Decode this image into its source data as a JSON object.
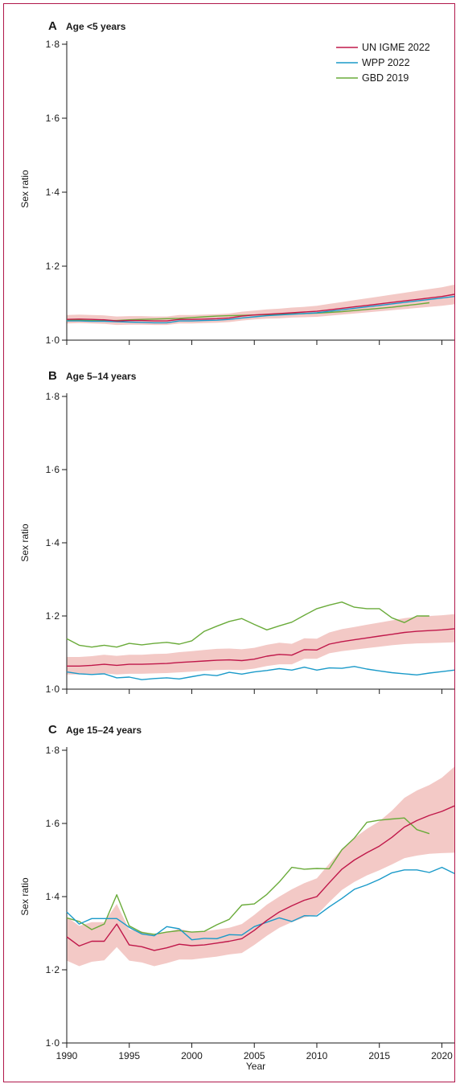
{
  "colors": {
    "un_igme": "#c0184a",
    "wpp": "#1a9ac9",
    "gbd": "#6aab3a",
    "band": "#f3c9c6",
    "border": "#b0174a"
  },
  "legend": [
    "UN IGME 2022",
    "WPP 2022",
    "GBD 2019"
  ],
  "chart_data": [
    {
      "type": "line",
      "panel": "A",
      "title": "Age <5 years",
      "xlabel": "",
      "ylabel": "Sex ratio",
      "xlim": [
        1990,
        2021
      ],
      "ylim": [
        1.0,
        1.8
      ],
      "yticks": [
        "1·0",
        "1·2",
        "1·4",
        "1·6",
        "1·8"
      ],
      "x": [
        1990,
        1991,
        1992,
        1993,
        1994,
        1995,
        1996,
        1997,
        1998,
        1999,
        2000,
        2001,
        2002,
        2003,
        2004,
        2005,
        2006,
        2007,
        2008,
        2009,
        2010,
        2011,
        2012,
        2013,
        2014,
        2015,
        2016,
        2017,
        2018,
        2019,
        2020,
        2021
      ],
      "series": [
        {
          "name": "UN IGME 2022",
          "color_key": "un_igme",
          "values": [
            1.056,
            1.057,
            1.056,
            1.055,
            1.052,
            1.053,
            1.053,
            1.052,
            1.052,
            1.056,
            1.056,
            1.057,
            1.058,
            1.06,
            1.065,
            1.068,
            1.07,
            1.072,
            1.074,
            1.076,
            1.078,
            1.082,
            1.086,
            1.09,
            1.094,
            1.098,
            1.102,
            1.106,
            1.11,
            1.114,
            1.118,
            1.124
          ],
          "band_lower": [
            1.045,
            1.046,
            1.045,
            1.044,
            1.041,
            1.042,
            1.042,
            1.041,
            1.041,
            1.045,
            1.045,
            1.046,
            1.047,
            1.049,
            1.053,
            1.056,
            1.058,
            1.059,
            1.061,
            1.062,
            1.063,
            1.066,
            1.069,
            1.072,
            1.075,
            1.078,
            1.081,
            1.084,
            1.087,
            1.09,
            1.093,
            1.097
          ],
          "band_upper": [
            1.068,
            1.069,
            1.068,
            1.067,
            1.064,
            1.065,
            1.065,
            1.064,
            1.064,
            1.068,
            1.068,
            1.069,
            1.07,
            1.072,
            1.077,
            1.08,
            1.083,
            1.085,
            1.088,
            1.09,
            1.093,
            1.098,
            1.103,
            1.108,
            1.113,
            1.118,
            1.123,
            1.128,
            1.133,
            1.138,
            1.143,
            1.15
          ]
        },
        {
          "name": "WPP 2022",
          "color_key": "wpp",
          "values": [
            1.052,
            1.052,
            1.051,
            1.051,
            1.05,
            1.049,
            1.048,
            1.047,
            1.047,
            1.052,
            1.052,
            1.053,
            1.054,
            1.056,
            1.06,
            1.063,
            1.066,
            1.068,
            1.07,
            1.072,
            1.074,
            1.078,
            1.082,
            1.086,
            1.09,
            1.094,
            1.098,
            1.102,
            1.106,
            1.11,
            1.114,
            1.118
          ]
        },
        {
          "name": "GBD 2019",
          "color_key": "gbd",
          "values": [
            1.054,
            1.054,
            1.053,
            1.053,
            1.053,
            1.055,
            1.056,
            1.057,
            1.058,
            1.059,
            1.061,
            1.063,
            1.065,
            1.066,
            1.067,
            1.068,
            1.069,
            1.07,
            1.071,
            1.072,
            1.073,
            1.075,
            1.077,
            1.08,
            1.083,
            1.086,
            1.089,
            1.093,
            1.097,
            1.101,
            null,
            null
          ]
        }
      ]
    },
    {
      "type": "line",
      "panel": "B",
      "title": "Age 5–14 years",
      "xlabel": "",
      "ylabel": "Sex ratio",
      "xlim": [
        1990,
        2021
      ],
      "ylim": [
        1.0,
        1.8
      ],
      "yticks": [
        "1·0",
        "1·2",
        "1·4",
        "1·6",
        "1·8"
      ],
      "x": [
        1990,
        1991,
        1992,
        1993,
        1994,
        1995,
        1996,
        1997,
        1998,
        1999,
        2000,
        2001,
        2002,
        2003,
        2004,
        2005,
        2006,
        2007,
        2008,
        2009,
        2010,
        2011,
        2012,
        2013,
        2014,
        2015,
        2016,
        2017,
        2018,
        2019,
        2020,
        2021
      ],
      "series": [
        {
          "name": "UN IGME 2022",
          "color_key": "un_igme",
          "values": [
            1.063,
            1.063,
            1.065,
            1.068,
            1.065,
            1.068,
            1.068,
            1.069,
            1.07,
            1.073,
            1.075,
            1.077,
            1.079,
            1.08,
            1.078,
            1.082,
            1.09,
            1.095,
            1.093,
            1.108,
            1.107,
            1.123,
            1.13,
            1.135,
            1.14,
            1.145,
            1.15,
            1.155,
            1.158,
            1.16,
            1.162,
            1.165
          ],
          "band_lower": [
            1.04,
            1.04,
            1.041,
            1.043,
            1.04,
            1.042,
            1.042,
            1.043,
            1.044,
            1.046,
            1.048,
            1.05,
            1.052,
            1.053,
            1.052,
            1.056,
            1.063,
            1.068,
            1.068,
            1.083,
            1.083,
            1.098,
            1.104,
            1.108,
            1.112,
            1.116,
            1.12,
            1.123,
            1.125,
            1.126,
            1.127,
            1.128
          ],
          "band_upper": [
            1.088,
            1.088,
            1.09,
            1.094,
            1.091,
            1.094,
            1.094,
            1.096,
            1.097,
            1.101,
            1.104,
            1.107,
            1.11,
            1.111,
            1.109,
            1.113,
            1.121,
            1.127,
            1.124,
            1.139,
            1.138,
            1.155,
            1.164,
            1.17,
            1.176,
            1.182,
            1.188,
            1.194,
            1.198,
            1.2,
            1.202,
            1.205
          ]
        },
        {
          "name": "WPP 2022",
          "color_key": "wpp",
          "values": [
            1.047,
            1.042,
            1.04,
            1.042,
            1.031,
            1.033,
            1.026,
            1.029,
            1.031,
            1.028,
            1.034,
            1.04,
            1.037,
            1.046,
            1.041,
            1.047,
            1.051,
            1.056,
            1.052,
            1.06,
            1.052,
            1.058,
            1.057,
            1.062,
            1.055,
            1.05,
            1.045,
            1.042,
            1.039,
            1.044,
            1.048,
            1.052
          ]
        },
        {
          "name": "GBD 2019",
          "color_key": "gbd",
          "values": [
            1.138,
            1.12,
            1.115,
            1.12,
            1.115,
            1.125,
            1.121,
            1.125,
            1.128,
            1.123,
            1.132,
            1.158,
            1.172,
            1.185,
            1.193,
            1.177,
            1.162,
            1.173,
            1.183,
            1.202,
            1.22,
            1.23,
            1.238,
            1.224,
            1.22,
            1.22,
            1.195,
            1.182,
            1.2,
            1.2,
            null,
            null
          ]
        }
      ]
    },
    {
      "type": "line",
      "panel": "C",
      "title": "Age 15–24 years",
      "xlabel": "Year",
      "ylabel": "Sex ratio",
      "xlim": [
        1990,
        2021
      ],
      "ylim": [
        1.0,
        1.8
      ],
      "yticks": [
        "1·0",
        "1·2",
        "1·4",
        "1·6",
        "1·8"
      ],
      "xticks": [
        "1990",
        "1995",
        "2000",
        "2005",
        "2010",
        "2015",
        "2020"
      ],
      "x": [
        1990,
        1991,
        1992,
        1993,
        1994,
        1995,
        1996,
        1997,
        1998,
        1999,
        2000,
        2001,
        2002,
        2003,
        2004,
        2005,
        2006,
        2007,
        2008,
        2009,
        2010,
        2011,
        2012,
        2013,
        2014,
        2015,
        2016,
        2017,
        2018,
        2019,
        2020,
        2021
      ],
      "series": [
        {
          "name": "UN IGME 2022",
          "color_key": "un_igme",
          "values": [
            1.29,
            1.265,
            1.278,
            1.278,
            1.325,
            1.268,
            1.263,
            1.253,
            1.26,
            1.27,
            1.266,
            1.268,
            1.273,
            1.278,
            1.285,
            1.308,
            1.335,
            1.358,
            1.375,
            1.39,
            1.4,
            1.438,
            1.475,
            1.5,
            1.52,
            1.538,
            1.562,
            1.59,
            1.608,
            1.622,
            1.633,
            1.648
          ],
          "band_lower": [
            1.225,
            1.21,
            1.222,
            1.226,
            1.262,
            1.225,
            1.22,
            1.21,
            1.218,
            1.228,
            1.228,
            1.232,
            1.236,
            1.242,
            1.246,
            1.268,
            1.293,
            1.315,
            1.33,
            1.343,
            1.35,
            1.385,
            1.418,
            1.44,
            1.458,
            1.472,
            1.488,
            1.505,
            1.512,
            1.517,
            1.519,
            1.52
          ],
          "band_upper": [
            1.345,
            1.32,
            1.33,
            1.33,
            1.38,
            1.31,
            1.305,
            1.295,
            1.303,
            1.312,
            1.304,
            1.305,
            1.31,
            1.315,
            1.325,
            1.35,
            1.378,
            1.4,
            1.42,
            1.437,
            1.45,
            1.49,
            1.53,
            1.56,
            1.585,
            1.606,
            1.635,
            1.67,
            1.69,
            1.705,
            1.725,
            1.755
          ]
        },
        {
          "name": "WPP 2022",
          "color_key": "wpp",
          "values": [
            1.358,
            1.325,
            1.34,
            1.34,
            1.34,
            1.316,
            1.298,
            1.293,
            1.318,
            1.312,
            1.282,
            1.286,
            1.285,
            1.296,
            1.295,
            1.318,
            1.33,
            1.342,
            1.332,
            1.348,
            1.347,
            1.372,
            1.395,
            1.42,
            1.432,
            1.447,
            1.465,
            1.473,
            1.473,
            1.466,
            1.48,
            1.463
          ]
        },
        {
          "name": "GBD 2019",
          "color_key": "gbd",
          "values": [
            1.342,
            1.332,
            1.31,
            1.325,
            1.405,
            1.32,
            1.302,
            1.297,
            1.303,
            1.307,
            1.303,
            1.305,
            1.323,
            1.338,
            1.377,
            1.38,
            1.406,
            1.44,
            1.48,
            1.475,
            1.477,
            1.476,
            1.528,
            1.56,
            1.603,
            1.609,
            1.612,
            1.615,
            1.583,
            1.572,
            null,
            null
          ]
        }
      ]
    }
  ]
}
